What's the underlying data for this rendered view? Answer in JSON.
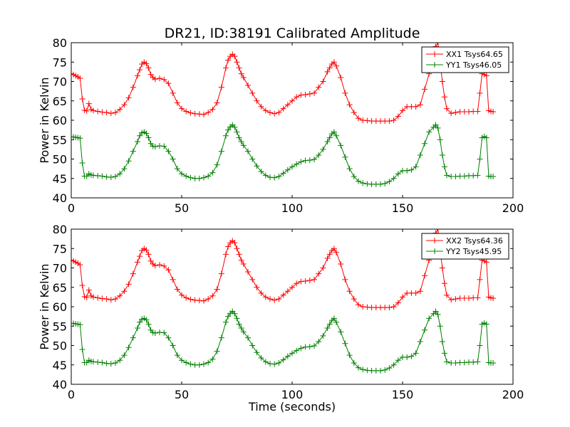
{
  "title": "DR21, ID:38191 Calibrated Amplitude",
  "colors": {
    "red": "#ff0000",
    "green": "#008000"
  },
  "chart_data": [
    {
      "type": "line",
      "xlabel": "",
      "ylabel": "Power in Kelvin",
      "xlim": [
        0,
        200
      ],
      "ylim": [
        40,
        80
      ],
      "xticks": [
        "0",
        "50",
        "100",
        "150",
        "200"
      ],
      "yticks": [
        "40",
        "45",
        "50",
        "55",
        "60",
        "65",
        "70",
        "75",
        "80"
      ],
      "legend_position": "top-right",
      "series": [
        {
          "name": "XX1 Tsys64.65",
          "color": "#ff0000",
          "x": [
            0,
            1,
            2,
            3,
            4,
            5,
            6,
            7,
            8,
            9,
            10,
            12,
            14,
            16,
            18,
            20,
            22,
            24,
            26,
            28,
            30,
            31,
            32,
            33,
            34,
            35,
            36,
            37,
            38,
            40,
            42,
            44,
            46,
            48,
            50,
            52,
            54,
            56,
            58,
            60,
            62,
            64,
            66,
            68,
            70,
            71,
            72,
            73,
            74,
            75,
            76,
            77,
            78,
            80,
            82,
            84,
            86,
            88,
            90,
            92,
            94,
            96,
            98,
            100,
            102,
            104,
            106,
            108,
            110,
            112,
            114,
            116,
            117,
            118,
            119,
            120,
            122,
            124,
            126,
            128,
            130,
            132,
            134,
            136,
            138,
            140,
            142,
            144,
            146,
            148,
            150,
            152,
            154,
            156,
            158,
            160,
            162,
            164,
            165,
            166,
            167,
            168,
            169,
            170,
            172,
            174,
            176,
            178,
            180,
            182,
            184,
            185,
            186,
            187,
            188,
            189,
            190,
            191
          ],
          "y": [
            72,
            71.8,
            71.5,
            71.2,
            70.8,
            65.5,
            62.6,
            62.4,
            64.3,
            62.8,
            62.5,
            62.3,
            62.1,
            62.0,
            61.8,
            62.0,
            62.8,
            64.0,
            65.8,
            68.5,
            71.5,
            73,
            74.5,
            75,
            74.6,
            73.5,
            71.8,
            71,
            70.6,
            70.8,
            70.5,
            69.5,
            67,
            64.5,
            63,
            62.3,
            61.9,
            61.7,
            61.6,
            61.5,
            62.0,
            62.8,
            64.5,
            68.5,
            73.5,
            75.5,
            76.5,
            77,
            76.5,
            75,
            73.5,
            72,
            71,
            69,
            67,
            65,
            63.5,
            62.5,
            62,
            61.7,
            62,
            63,
            64,
            65,
            66,
            66.5,
            66.6,
            66.8,
            67,
            68.5,
            70,
            72.5,
            73.5,
            74.5,
            75,
            74,
            71,
            67,
            64,
            62,
            60.5,
            60,
            59.9,
            59.8,
            59.8,
            59.8,
            59.8,
            59.8,
            60,
            61,
            62.5,
            63.5,
            63.5,
            63.5,
            64,
            68,
            72,
            77.5,
            79,
            80,
            75,
            70,
            66,
            63,
            61.8,
            62,
            62.2,
            62.2,
            62.2,
            62.3,
            62.3,
            67,
            72,
            71.8,
            71.5,
            62.5,
            62.3,
            62.2
          ]
        },
        {
          "name": "YY1 Tsys46.05",
          "color": "#008000",
          "x": [
            0,
            1,
            2,
            3,
            4,
            5,
            6,
            7,
            8,
            9,
            10,
            12,
            14,
            16,
            18,
            20,
            22,
            24,
            26,
            28,
            30,
            31,
            32,
            33,
            34,
            35,
            36,
            37,
            38,
            40,
            42,
            44,
            46,
            48,
            50,
            52,
            54,
            56,
            58,
            60,
            62,
            64,
            66,
            68,
            70,
            71,
            72,
            73,
            74,
            75,
            76,
            77,
            78,
            80,
            82,
            84,
            86,
            88,
            90,
            92,
            94,
            96,
            98,
            100,
            102,
            104,
            106,
            108,
            110,
            112,
            114,
            116,
            117,
            118,
            119,
            120,
            122,
            124,
            126,
            128,
            130,
            132,
            134,
            136,
            138,
            140,
            142,
            144,
            146,
            148,
            150,
            152,
            154,
            156,
            158,
            160,
            162,
            164,
            165,
            166,
            167,
            168,
            169,
            170,
            172,
            174,
            176,
            178,
            180,
            182,
            184,
            185,
            186,
            187,
            188,
            189,
            190,
            191
          ],
          "y": [
            55.7,
            55.7,
            55.6,
            55.5,
            55.4,
            49,
            45.6,
            45.6,
            46.2,
            45.9,
            45.8,
            45.7,
            45.6,
            45.4,
            45.3,
            45.5,
            46.2,
            47.5,
            49.5,
            52,
            54.5,
            56,
            56.8,
            57,
            56.6,
            55.5,
            54,
            53.3,
            53.2,
            53.4,
            53.3,
            52,
            50,
            47.5,
            46.2,
            45.6,
            45.2,
            45.0,
            45.0,
            45.2,
            45.6,
            46.5,
            48.5,
            52,
            56,
            57.5,
            58.3,
            58.8,
            58.2,
            57,
            55.5,
            54.5,
            53.5,
            52,
            50,
            48.2,
            46.8,
            45.8,
            45.3,
            45.2,
            45.5,
            46.3,
            47.2,
            48,
            48.7,
            49.3,
            49.6,
            49.7,
            49.9,
            51,
            52.5,
            54.5,
            55.5,
            56.5,
            57,
            56,
            53.5,
            50.5,
            47.5,
            45.5,
            44.3,
            43.8,
            43.6,
            43.5,
            43.5,
            43.5,
            43.7,
            44.2,
            45,
            46.2,
            47,
            47,
            47.2,
            48,
            51,
            54,
            57,
            58.2,
            58.8,
            58,
            55,
            51,
            48,
            45.8,
            45.5,
            45.5,
            45.6,
            45.6,
            45.7,
            45.7,
            45.8,
            50,
            55.5,
            55.8,
            55.5,
            45.6,
            45.5,
            45.5
          ]
        }
      ]
    },
    {
      "type": "line",
      "xlabel": "Time (seconds)",
      "ylabel": "Power in Kelvin",
      "xlim": [
        0,
        200
      ],
      "ylim": [
        40,
        80
      ],
      "xticks": [
        "0",
        "50",
        "100",
        "150",
        "200"
      ],
      "yticks": [
        "40",
        "45",
        "50",
        "55",
        "60",
        "65",
        "70",
        "75",
        "80"
      ],
      "legend_position": "top-right",
      "series": [
        {
          "name": "XX2 Tsys64.36",
          "color": "#ff0000",
          "x": [
            0,
            1,
            2,
            3,
            4,
            5,
            6,
            7,
            8,
            9,
            10,
            12,
            14,
            16,
            18,
            20,
            22,
            24,
            26,
            28,
            30,
            31,
            32,
            33,
            34,
            35,
            36,
            37,
            38,
            40,
            42,
            44,
            46,
            48,
            50,
            52,
            54,
            56,
            58,
            60,
            62,
            64,
            66,
            68,
            70,
            71,
            72,
            73,
            74,
            75,
            76,
            77,
            78,
            80,
            82,
            84,
            86,
            88,
            90,
            92,
            94,
            96,
            98,
            100,
            102,
            104,
            106,
            108,
            110,
            112,
            114,
            116,
            117,
            118,
            119,
            120,
            122,
            124,
            126,
            128,
            130,
            132,
            134,
            136,
            138,
            140,
            142,
            144,
            146,
            148,
            150,
            152,
            154,
            156,
            158,
            160,
            162,
            164,
            165,
            166,
            167,
            168,
            169,
            170,
            172,
            174,
            176,
            178,
            180,
            182,
            184,
            185,
            186,
            187,
            188,
            189,
            190,
            191
          ],
          "y": [
            72,
            71.8,
            71.5,
            71.2,
            70.8,
            65.5,
            62.6,
            62.4,
            64.3,
            62.8,
            62.5,
            62.3,
            62.1,
            62.0,
            61.8,
            62.0,
            62.8,
            64.0,
            65.8,
            68.5,
            71.5,
            73,
            74.5,
            75,
            74.6,
            73.5,
            71.8,
            71,
            70.6,
            70.8,
            70.5,
            69.5,
            67,
            64.5,
            63,
            62.3,
            61.9,
            61.7,
            61.6,
            61.5,
            62.0,
            62.8,
            64.5,
            68.5,
            73.5,
            75.5,
            76.5,
            77,
            76.5,
            75,
            73.5,
            72,
            71,
            69,
            67,
            65,
            63.5,
            62.5,
            62,
            61.7,
            62,
            63,
            64,
            65,
            66,
            66.5,
            66.6,
            66.8,
            67,
            68.5,
            70,
            72.5,
            73.5,
            74.5,
            75,
            74,
            71,
            67,
            64,
            62,
            60.5,
            60,
            59.9,
            59.8,
            59.8,
            59.8,
            59.8,
            59.8,
            60,
            61,
            62.5,
            63.5,
            63.5,
            63.5,
            64,
            68,
            72,
            77.5,
            79,
            80,
            75,
            70,
            66,
            63,
            61.8,
            62,
            62.2,
            62.2,
            62.2,
            62.3,
            62.3,
            67,
            72,
            71.8,
            71.5,
            62.5,
            62.3,
            62.2
          ]
        },
        {
          "name": "YY2 Tsys45.95",
          "color": "#008000",
          "x": [
            0,
            1,
            2,
            3,
            4,
            5,
            6,
            7,
            8,
            9,
            10,
            12,
            14,
            16,
            18,
            20,
            22,
            24,
            26,
            28,
            30,
            31,
            32,
            33,
            34,
            35,
            36,
            37,
            38,
            40,
            42,
            44,
            46,
            48,
            50,
            52,
            54,
            56,
            58,
            60,
            62,
            64,
            66,
            68,
            70,
            71,
            72,
            73,
            74,
            75,
            76,
            77,
            78,
            80,
            82,
            84,
            86,
            88,
            90,
            92,
            94,
            96,
            98,
            100,
            102,
            104,
            106,
            108,
            110,
            112,
            114,
            116,
            117,
            118,
            119,
            120,
            122,
            124,
            126,
            128,
            130,
            132,
            134,
            136,
            138,
            140,
            142,
            144,
            146,
            148,
            150,
            152,
            154,
            156,
            158,
            160,
            162,
            164,
            165,
            166,
            167,
            168,
            169,
            170,
            172,
            174,
            176,
            178,
            180,
            182,
            184,
            185,
            186,
            187,
            188,
            189,
            190,
            191
          ],
          "y": [
            55.7,
            55.7,
            55.6,
            55.5,
            55.4,
            49,
            45.6,
            45.6,
            46.2,
            45.9,
            45.8,
            45.7,
            45.6,
            45.4,
            45.3,
            45.5,
            46.2,
            47.5,
            49.5,
            52,
            54.5,
            56,
            56.8,
            57,
            56.6,
            55.5,
            54,
            53.3,
            53.2,
            53.4,
            53.3,
            52,
            50,
            47.5,
            46.2,
            45.6,
            45.2,
            45.0,
            45.0,
            45.2,
            45.6,
            46.5,
            48.5,
            52,
            56,
            57.5,
            58.3,
            58.8,
            58.2,
            57,
            55.5,
            54.5,
            53.5,
            52,
            50,
            48.2,
            46.8,
            45.8,
            45.3,
            45.2,
            45.5,
            46.3,
            47.2,
            48,
            48.7,
            49.3,
            49.6,
            49.7,
            49.9,
            51,
            52.5,
            54.5,
            55.5,
            56.5,
            57,
            56,
            53.5,
            50.5,
            47.5,
            45.5,
            44.3,
            43.8,
            43.6,
            43.5,
            43.5,
            43.5,
            43.7,
            44.2,
            45,
            46.2,
            47,
            47,
            47.2,
            48,
            51,
            54,
            57,
            58.2,
            58.8,
            58,
            55,
            51,
            48,
            45.8,
            45.5,
            45.5,
            45.6,
            45.6,
            45.7,
            45.7,
            45.8,
            50,
            55.5,
            55.8,
            55.5,
            45.6,
            45.5,
            45.5
          ]
        }
      ]
    }
  ]
}
